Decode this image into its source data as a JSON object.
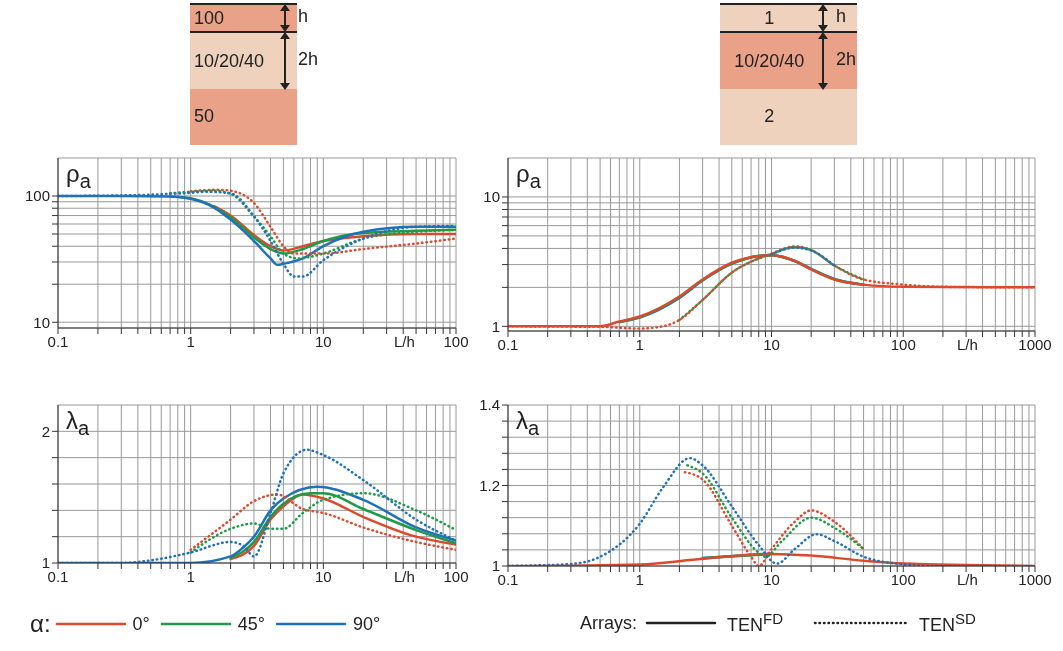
{
  "chart_data": [
    {
      "type": "other",
      "categories": [
        "100",
        "10/20/40",
        "50"
      ],
      "colors": [
        "#e9a287",
        "#efd2bd",
        "#e9a287"
      ],
      "annotations": [
        "h",
        "2h"
      ]
    },
    {
      "type": "other",
      "categories": [
        "1",
        "10/20/40",
        "2"
      ],
      "colors": [
        "#efd2bd",
        "#e9a287",
        "#efd2bd"
      ],
      "annotations": [
        "h",
        "2h"
      ]
    },
    {
      "type": "line",
      "ylabel": "ρ$_{a}$",
      "xlabel": "L/h",
      "log": "xy",
      "grid": true,
      "xlim": [
        0.1,
        100
      ],
      "xticks": [
        0.1,
        {
          "value": 0.2,
          "label": null
        },
        {
          "value": 0.3,
          "label": null
        },
        {
          "value": 0.4,
          "label": null
        },
        {
          "value": 0.5,
          "label": null
        },
        {
          "value": 0.6,
          "label": null
        },
        {
          "value": 0.7,
          "label": null
        },
        {
          "value": 0.8,
          "label": null
        },
        {
          "value": 0.9,
          "label": null
        },
        1,
        {
          "value": 2,
          "label": null
        },
        {
          "value": 3,
          "label": null
        },
        {
          "value": 4,
          "label": null
        },
        {
          "value": 5,
          "label": null
        },
        {
          "value": 6,
          "label": null
        },
        {
          "value": 7,
          "label": null
        },
        {
          "value": 8,
          "label": null
        },
        {
          "value": 9,
          "label": null
        },
        10,
        {
          "value": 20,
          "label": null
        },
        {
          "value": 30,
          "label": null
        },
        {
          "value": 40,
          "label": null
        },
        {
          "value": 50,
          "label": null
        },
        {
          "value": 60,
          "label": null
        },
        {
          "value": 70,
          "label": null
        },
        {
          "value": 80,
          "label": null
        },
        {
          "value": 90,
          "label": null
        },
        100
      ],
      "ylim": [
        9,
        200
      ],
      "yticks": [
        10,
        {
          "value": 20,
          "label": null
        },
        {
          "value": 30,
          "label": null
        },
        {
          "value": 40,
          "label": null
        },
        {
          "value": 50,
          "label": null
        },
        {
          "value": 60,
          "label": null
        },
        {
          "value": 70,
          "label": null
        },
        {
          "value": 80,
          "label": null
        },
        {
          "value": 90,
          "label": null
        },
        100
      ],
      "series": [
        {
          "color": "#dc4a2e",
          "line_style": "solid",
          "x": [
            1.5,
            2,
            3,
            4,
            4.5,
            5,
            7,
            10,
            20,
            50,
            100
          ],
          "values": [
            83,
            70,
            49,
            40,
            38,
            37,
            40,
            44,
            48,
            50,
            50
          ]
        },
        {
          "color": "#1e9a48",
          "line_style": "solid",
          "x": [
            0.7,
            1,
            1.5,
            2,
            3,
            4,
            4.5,
            5,
            7,
            10,
            20,
            50,
            100
          ],
          "values": [
            99,
            96,
            82,
            68,
            47,
            38,
            36,
            35,
            38,
            44,
            51,
            53,
            54
          ]
        },
        {
          "color": "#1f72b8",
          "line_style": "solid",
          "x": [
            0.1,
            0.3,
            0.7,
            1,
            1.5,
            2,
            3,
            4,
            4.5,
            5,
            7,
            10,
            20,
            50,
            100
          ],
          "values": [
            100,
            100,
            99,
            95,
            81,
            65,
            44,
            32,
            28.5,
            29,
            32,
            40,
            52,
            57,
            57
          ]
        },
        {
          "color": "#dc4a2e",
          "line_style": "dotted",
          "x": [
            1,
            1.6,
            2,
            3,
            4,
            5,
            6,
            8,
            10,
            20,
            50,
            100
          ],
          "values": [
            109,
            112,
            110,
            88,
            57,
            40,
            35,
            35,
            35,
            38,
            42,
            46
          ]
        },
        {
          "color": "#1e9a48",
          "line_style": "dotted",
          "x": [
            0.7,
            1,
            1.5,
            2,
            3,
            4,
            5,
            6.5,
            8,
            10,
            20,
            50,
            100
          ],
          "values": [
            105,
            108,
            110,
            104,
            69,
            48,
            35,
            32,
            33,
            35,
            46,
            52,
            54
          ]
        },
        {
          "color": "#1f72b8",
          "line_style": "dotted",
          "x": [
            0.1,
            0.3,
            0.7,
            1,
            1.3,
            2,
            3,
            4,
            5,
            6,
            7,
            10,
            20,
            50,
            100
          ],
          "values": [
            100,
            101,
            104,
            106,
            108,
            105,
            69,
            44,
            29,
            23,
            23,
            31,
            46,
            57,
            58
          ]
        }
      ]
    },
    {
      "type": "line",
      "ylabel": "ρ$_{a}$",
      "xlabel": "L/h",
      "log": "xy",
      "grid": true,
      "xlim": [
        0.1,
        1000
      ],
      "xticks": [
        0.1,
        {
          "value": 0.2,
          "label": null
        },
        {
          "value": 0.3,
          "label": null
        },
        {
          "value": 0.4,
          "label": null
        },
        {
          "value": 0.5,
          "label": null
        },
        {
          "value": 0.6,
          "label": null
        },
        {
          "value": 0.7,
          "label": null
        },
        {
          "value": 0.8,
          "label": null
        },
        {
          "value": 0.9,
          "label": null
        },
        1,
        {
          "value": 2,
          "label": null
        },
        {
          "value": 3,
          "label": null
        },
        {
          "value": 4,
          "label": null
        },
        {
          "value": 5,
          "label": null
        },
        {
          "value": 6,
          "label": null
        },
        {
          "value": 7,
          "label": null
        },
        {
          "value": 8,
          "label": null
        },
        {
          "value": 9,
          "label": null
        },
        10,
        {
          "value": 20,
          "label": null
        },
        {
          "value": 30,
          "label": null
        },
        {
          "value": 40,
          "label": null
        },
        {
          "value": 50,
          "label": null
        },
        {
          "value": 60,
          "label": null
        },
        {
          "value": 70,
          "label": null
        },
        {
          "value": 80,
          "label": null
        },
        {
          "value": 90,
          "label": null
        },
        100,
        {
          "value": 200,
          "label": null
        },
        {
          "value": 300,
          "label": null
        },
        {
          "value": 400,
          "label": null
        },
        {
          "value": 500,
          "label": null
        },
        {
          "value": 600,
          "label": null
        },
        {
          "value": 700,
          "label": null
        },
        {
          "value": 800,
          "label": null
        },
        {
          "value": 900,
          "label": null
        },
        1000
      ],
      "ylim": [
        0.92,
        20
      ],
      "yticks": [
        1,
        {
          "value": 2,
          "label": null
        },
        {
          "value": 3,
          "label": null
        },
        {
          "value": 4,
          "label": null
        },
        {
          "value": 5,
          "label": null
        },
        {
          "value": 6,
          "label": null
        },
        {
          "value": 7,
          "label": null
        },
        {
          "value": 8,
          "label": null
        },
        {
          "value": 9,
          "label": null
        },
        10
      ],
      "series": [
        {
          "color": "#1f72b8",
          "line_style": "solid",
          "x": [
            0.7,
            1,
            2,
            3,
            5,
            8,
            10,
            15,
            20,
            30,
            50
          ],
          "values": [
            1.08,
            1.17,
            1.66,
            2.26,
            3.05,
            3.5,
            3.55,
            3.2,
            2.78,
            2.32,
            2.1
          ]
        },
        {
          "color": "#1e9a48",
          "line_style": "solid",
          "x": [
            0.7,
            1,
            2,
            3,
            5,
            8,
            10,
            15,
            20,
            30,
            50
          ],
          "values": [
            1.08,
            1.18,
            1.68,
            2.28,
            3.05,
            3.5,
            3.55,
            3.2,
            2.77,
            2.31,
            2.1
          ]
        },
        {
          "color": "#dc4a2e",
          "line_style": "solid",
          "x": [
            0.1,
            0.5,
            0.7,
            1,
            2,
            3,
            5,
            8,
            10,
            15,
            20,
            30,
            50,
            100,
            1000
          ],
          "values": [
            1,
            1,
            1.09,
            1.19,
            1.7,
            2.3,
            3.1,
            3.5,
            3.55,
            3.2,
            2.75,
            2.3,
            2.1,
            2.02,
            2
          ]
        },
        {
          "color": "#1e9a48",
          "line_style": "dotted",
          "x": [
            2,
            3,
            5,
            10,
            15,
            20,
            30,
            50
          ],
          "values": [
            1.12,
            1.6,
            2.6,
            3.62,
            4.1,
            3.88,
            2.95,
            2.3
          ]
        },
        {
          "color": "#dc4a2e",
          "line_style": "dotted",
          "x": [
            0.1,
            0.5,
            1,
            1.5,
            2,
            3,
            5,
            10,
            15,
            20,
            30,
            50,
            100,
            200,
            1000
          ],
          "values": [
            1,
            0.99,
            0.96,
            1,
            1.12,
            1.6,
            2.6,
            3.65,
            4.15,
            3.9,
            2.95,
            2.3,
            2.1,
            2.02,
            2
          ]
        },
        {
          "color": "#1f72b8",
          "line_style": "dotted",
          "x": [
            10,
            15,
            20,
            30
          ],
          "values": [
            3.6,
            4.05,
            3.85,
            2.95
          ]
        }
      ]
    },
    {
      "type": "line",
      "ylabel": "λ$_{a}$",
      "xlabel": "L/h",
      "log": "x",
      "grid": true,
      "legend": "bottom",
      "legend_title": "α:",
      "xlim": [
        0.1,
        100
      ],
      "xticks": [
        0.1,
        {
          "value": 0.2,
          "label": null
        },
        {
          "value": 0.3,
          "label": null
        },
        {
          "value": 0.4,
          "label": null
        },
        {
          "value": 0.5,
          "label": null
        },
        {
          "value": 0.6,
          "label": null
        },
        {
          "value": 0.7,
          "label": null
        },
        {
          "value": 0.8,
          "label": null
        },
        {
          "value": 0.9,
          "label": null
        },
        1,
        {
          "value": 2,
          "label": null
        },
        {
          "value": 3,
          "label": null
        },
        {
          "value": 4,
          "label": null
        },
        {
          "value": 5,
          "label": null
        },
        {
          "value": 6,
          "label": null
        },
        {
          "value": 7,
          "label": null
        },
        {
          "value": 8,
          "label": null
        },
        {
          "value": 9,
          "label": null
        },
        10,
        {
          "value": 20,
          "label": null
        },
        {
          "value": 30,
          "label": null
        },
        {
          "value": 40,
          "label": null
        },
        {
          "value": 50,
          "label": null
        },
        {
          "value": 60,
          "label": null
        },
        {
          "value": 70,
          "label": null
        },
        {
          "value": 80,
          "label": null
        },
        {
          "value": 90,
          "label": null
        },
        100
      ],
      "ylim": [
        1,
        2.2
      ],
      "yticks": [
        1,
        {
          "value": 1.2,
          "label": null
        },
        {
          "value": 1.4,
          "label": null
        },
        {
          "value": 1.6,
          "label": null
        },
        {
          "value": 1.8,
          "label": null
        },
        2
      ],
      "series": [
        {
          "name": "0°",
          "color": "#dc4a2e",
          "line_style": "solid",
          "x": [
            2,
            3,
            4,
            5,
            7,
            10,
            20,
            50,
            100
          ],
          "values": [
            1.03,
            1.13,
            1.33,
            1.43,
            1.52,
            1.49,
            1.35,
            1.2,
            1.14
          ]
        },
        {
          "name": "45°",
          "color": "#1e9a48",
          "line_style": "solid",
          "x": [
            2,
            3,
            4,
            5,
            8,
            10,
            20,
            50,
            100
          ],
          "values": [
            1.04,
            1.16,
            1.35,
            1.45,
            1.53,
            1.53,
            1.41,
            1.25,
            1.15
          ]
        },
        {
          "name": "90°",
          "color": "#1f72b8",
          "line_style": "solid",
          "x": [
            0.1,
            0.5,
            1,
            2,
            2.5,
            3,
            4,
            5,
            9,
            20,
            50,
            100
          ],
          "values": [
            1,
            1,
            1,
            1.05,
            1.12,
            1.2,
            1.4,
            1.49,
            1.58,
            1.48,
            1.27,
            1.17
          ]
        },
        {
          "color": "#dc4a2e",
          "line_style": "dotted",
          "x": [
            1,
            2,
            3,
            4.5,
            7,
            10,
            20,
            50,
            100
          ],
          "values": [
            1.1,
            1.33,
            1.47,
            1.52,
            1.41,
            1.38,
            1.27,
            1.16,
            1.1
          ]
        },
        {
          "color": "#1e9a48",
          "line_style": "dotted",
          "x": [
            1,
            2,
            3,
            4,
            5,
            7,
            10,
            20,
            50,
            100
          ],
          "values": [
            1.08,
            1.26,
            1.3,
            1.26,
            1.26,
            1.38,
            1.48,
            1.53,
            1.4,
            1.25
          ]
        },
        {
          "color": "#1f72b8",
          "line_style": "dotted",
          "x": [
            0.1,
            0.3,
            0.5,
            1,
            2,
            2.5,
            3,
            4,
            5,
            7.5,
            10,
            20,
            50,
            100
          ],
          "values": [
            1,
            1,
            1.02,
            1.08,
            1.16,
            1.13,
            1.05,
            1.38,
            1.68,
            1.86,
            1.82,
            1.63,
            1.33,
            1.17
          ]
        }
      ]
    },
    {
      "type": "line",
      "ylabel": "λ$_{a}$",
      "xlabel": "L/h",
      "log": "x",
      "grid": true,
      "annotations": [
        "Arrays:",
        "TEN$^{FD}$",
        "TEN$^{SD}$"
      ],
      "xlim": [
        0.1,
        1000
      ],
      "xticks": [
        0.1,
        {
          "value": 0.2,
          "label": null
        },
        {
          "value": 0.3,
          "label": null
        },
        {
          "value": 0.4,
          "label": null
        },
        {
          "value": 0.5,
          "label": null
        },
        {
          "value": 0.6,
          "label": null
        },
        {
          "value": 0.7,
          "label": null
        },
        {
          "value": 0.8,
          "label": null
        },
        {
          "value": 0.9,
          "label": null
        },
        1,
        {
          "value": 2,
          "label": null
        },
        {
          "value": 3,
          "label": null
        },
        {
          "value": 4,
          "label": null
        },
        {
          "value": 5,
          "label": null
        },
        {
          "value": 6,
          "label": null
        },
        {
          "value": 7,
          "label": null
        },
        {
          "value": 8,
          "label": null
        },
        {
          "value": 9,
          "label": null
        },
        10,
        {
          "value": 20,
          "label": null
        },
        {
          "value": 30,
          "label": null
        },
        {
          "value": 40,
          "label": null
        },
        {
          "value": 50,
          "label": null
        },
        {
          "value": 60,
          "label": null
        },
        {
          "value": 70,
          "label": null
        },
        {
          "value": 80,
          "label": null
        },
        {
          "value": 90,
          "label": null
        },
        100,
        {
          "value": 200,
          "label": null
        },
        {
          "value": 300,
          "label": null
        },
        {
          "value": 400,
          "label": null
        },
        {
          "value": 500,
          "label": null
        },
        {
          "value": 600,
          "label": null
        },
        {
          "value": 700,
          "label": null
        },
        {
          "value": 800,
          "label": null
        },
        {
          "value": 900,
          "label": null
        },
        1000
      ],
      "ylim": [
        1,
        1.4
      ],
      "yticks": [
        1,
        {
          "value": 1.04,
          "label": null
        },
        {
          "value": 1.08,
          "label": null
        },
        {
          "value": 1.12,
          "label": null
        },
        {
          "value": 1.16,
          "label": null
        },
        1.2,
        {
          "value": 1.24,
          "label": null
        },
        {
          "value": 1.28,
          "label": null
        },
        {
          "value": 1.32,
          "label": null
        },
        {
          "value": 1.36,
          "label": null
        },
        1.4
      ],
      "series": [
        {
          "color": "#1f72b8",
          "line_style": "solid",
          "x": [
            3,
            10
          ],
          "values": [
            1.02,
            1.031
          ]
        },
        {
          "color": "#1e9a48",
          "line_style": "solid",
          "x": [
            3,
            10
          ],
          "values": [
            1.019,
            1.03
          ]
        },
        {
          "color": "#dc4a2e",
          "line_style": "solid",
          "x": [
            0.1,
            1,
            3,
            10,
            20,
            50,
            100,
            1000
          ],
          "values": [
            1,
            1.004,
            1.018,
            1.03,
            1.026,
            1.013,
            1.006,
            1
          ]
        },
        {
          "color": "#dc4a2e",
          "line_style": "dotted",
          "x": [
            2.2,
            3,
            5,
            7,
            8,
            10,
            15,
            20,
            30,
            50
          ],
          "values": [
            1.233,
            1.215,
            1.1,
            1.023,
            1,
            1.042,
            1.11,
            1.138,
            1.11,
            1.042
          ]
        },
        {
          "color": "#1e9a48",
          "line_style": "dotted",
          "x": [
            2.3,
            3,
            5,
            8,
            9,
            12,
            20,
            30,
            50
          ],
          "values": [
            1.25,
            1.23,
            1.12,
            1.033,
            1.023,
            1.062,
            1.12,
            1.095,
            1.042
          ]
        },
        {
          "color": "#1f72b8",
          "line_style": "dotted",
          "x": [
            0.1,
            0.3,
            0.5,
            1,
            1.5,
            2.4,
            3,
            5,
            8,
            11,
            15,
            22,
            30,
            50,
            100,
            150,
            1000
          ],
          "values": [
            1,
            1.005,
            1.023,
            1.105,
            1.195,
            1.268,
            1.25,
            1.148,
            1.052,
            1.006,
            1.042,
            1.079,
            1.062,
            1.023,
            1.004,
            1,
            1
          ]
        }
      ]
    }
  ]
}
